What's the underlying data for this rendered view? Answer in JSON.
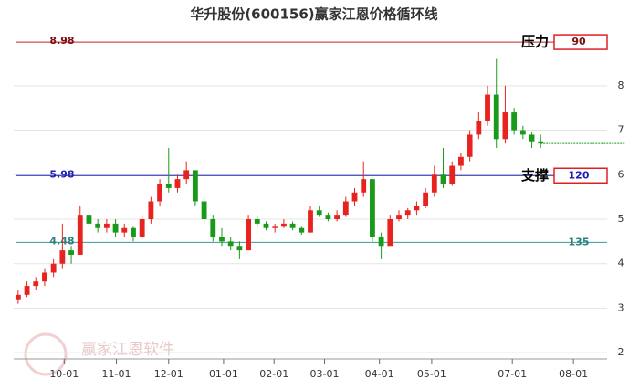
{
  "chart_data": {
    "type": "candlestick",
    "title": "华升股份(600156)赢家江恩价格循环线",
    "watermark": "赢家江恩软件",
    "up_color": "#e8231f",
    "down_color": "#1a9a1a",
    "candles": [
      [
        3.2,
        3.4,
        3.1,
        3.3
      ],
      [
        3.3,
        3.6,
        3.25,
        3.5
      ],
      [
        3.5,
        3.7,
        3.4,
        3.6
      ],
      [
        3.6,
        3.9,
        3.5,
        3.8
      ],
      [
        3.8,
        4.1,
        3.7,
        4.0
      ],
      [
        4.0,
        4.9,
        3.9,
        4.3
      ],
      [
        4.3,
        4.4,
        4.0,
        4.2
      ],
      [
        4.2,
        5.3,
        4.2,
        5.1
      ],
      [
        5.1,
        5.2,
        4.8,
        4.9
      ],
      [
        4.9,
        5.0,
        4.7,
        4.8
      ],
      [
        4.8,
        5.0,
        4.7,
        4.9
      ],
      [
        4.9,
        5.0,
        4.6,
        4.7
      ],
      [
        4.7,
        4.9,
        4.6,
        4.8
      ],
      [
        4.8,
        4.85,
        4.5,
        4.6
      ],
      [
        4.6,
        5.1,
        4.55,
        5.0
      ],
      [
        5.0,
        5.5,
        4.9,
        5.4
      ],
      [
        5.4,
        5.9,
        5.3,
        5.8
      ],
      [
        5.8,
        6.6,
        5.6,
        5.7
      ],
      [
        5.7,
        6.0,
        5.6,
        5.9
      ],
      [
        5.9,
        6.3,
        5.8,
        6.1
      ],
      [
        6.1,
        6.1,
        5.3,
        5.4
      ],
      [
        5.4,
        5.5,
        4.9,
        5.0
      ],
      [
        5.0,
        5.1,
        4.5,
        4.6
      ],
      [
        4.6,
        4.8,
        4.4,
        4.5
      ],
      [
        4.5,
        4.6,
        4.3,
        4.4
      ],
      [
        4.4,
        4.5,
        4.1,
        4.3
      ],
      [
        4.3,
        5.1,
        4.3,
        5.0
      ],
      [
        5.0,
        5.05,
        4.85,
        4.9
      ],
      [
        4.9,
        4.95,
        4.75,
        4.8
      ],
      [
        4.8,
        4.9,
        4.7,
        4.85
      ],
      [
        4.85,
        5.0,
        4.8,
        4.9
      ],
      [
        4.9,
        4.95,
        4.75,
        4.8
      ],
      [
        4.8,
        4.85,
        4.65,
        4.7
      ],
      [
        4.7,
        5.3,
        4.7,
        5.2
      ],
      [
        5.2,
        5.3,
        5.05,
        5.1
      ],
      [
        5.1,
        5.15,
        4.95,
        5.0
      ],
      [
        5.0,
        5.2,
        4.95,
        5.1
      ],
      [
        5.1,
        5.5,
        5.05,
        5.4
      ],
      [
        5.4,
        5.7,
        5.3,
        5.6
      ],
      [
        5.6,
        6.3,
        5.5,
        5.9
      ],
      [
        5.9,
        5.9,
        4.5,
        4.6
      ],
      [
        4.6,
        4.7,
        4.1,
        4.4
      ],
      [
        4.4,
        5.1,
        4.4,
        5.0
      ],
      [
        5.0,
        5.2,
        4.95,
        5.1
      ],
      [
        5.1,
        5.25,
        5.0,
        5.2
      ],
      [
        5.2,
        5.4,
        5.1,
        5.3
      ],
      [
        5.3,
        5.7,
        5.25,
        5.6
      ],
      [
        5.6,
        6.2,
        5.5,
        6.0
      ],
      [
        6.0,
        6.6,
        5.7,
        5.8
      ],
      [
        5.8,
        6.3,
        5.75,
        6.2
      ],
      [
        6.2,
        6.5,
        6.1,
        6.4
      ],
      [
        6.4,
        7.0,
        6.3,
        6.9
      ],
      [
        6.9,
        7.4,
        6.8,
        7.2
      ],
      [
        7.2,
        8.0,
        7.1,
        7.8
      ],
      [
        7.8,
        8.6,
        6.6,
        6.8
      ],
      [
        6.8,
        8.0,
        6.7,
        7.4
      ],
      [
        7.4,
        7.5,
        6.9,
        7.0
      ],
      [
        7.0,
        7.1,
        6.8,
        6.9
      ],
      [
        6.9,
        6.95,
        6.6,
        6.75
      ],
      [
        6.75,
        6.9,
        6.6,
        6.7
      ]
    ],
    "last_price": 6.7,
    "last_price_color": "#1a9a1a",
    "levels": [
      {
        "value": 8.98,
        "name": "压力",
        "cycle": 90,
        "color": "#c0202a",
        "label_color": "#7a1010"
      },
      {
        "value": 5.98,
        "name": "支撑",
        "cycle": 120,
        "color": "#2020b0",
        "label_color": "#2020b0"
      },
      {
        "value": 4.48,
        "cycle": 135,
        "color": "#3a9a9a",
        "label_color": "#2a8080"
      }
    ],
    "box_color": "#e02020",
    "xlim": [
      -0.5,
      66.5
    ],
    "ylim": [
      1.86,
      9.31
    ],
    "yticks": [
      2,
      3,
      4,
      5,
      6,
      7,
      8
    ],
    "xticks": [
      {
        "value": 5.2,
        "label": "10-01"
      },
      {
        "value": 11.1,
        "label": "11-01"
      },
      {
        "value": 17.0,
        "label": "12-01"
      },
      {
        "value": 23.2,
        "label": "01-01"
      },
      {
        "value": 28.9,
        "label": "02-01"
      },
      {
        "value": 34.6,
        "label": "03-01"
      },
      {
        "value": 40.8,
        "label": "04-01"
      },
      {
        "value": 46.7,
        "label": "05-01"
      },
      {
        "value": 55.8,
        "label": "07-01"
      },
      {
        "value": 62.7,
        "label": "08-01"
      }
    ],
    "grid": true
  }
}
